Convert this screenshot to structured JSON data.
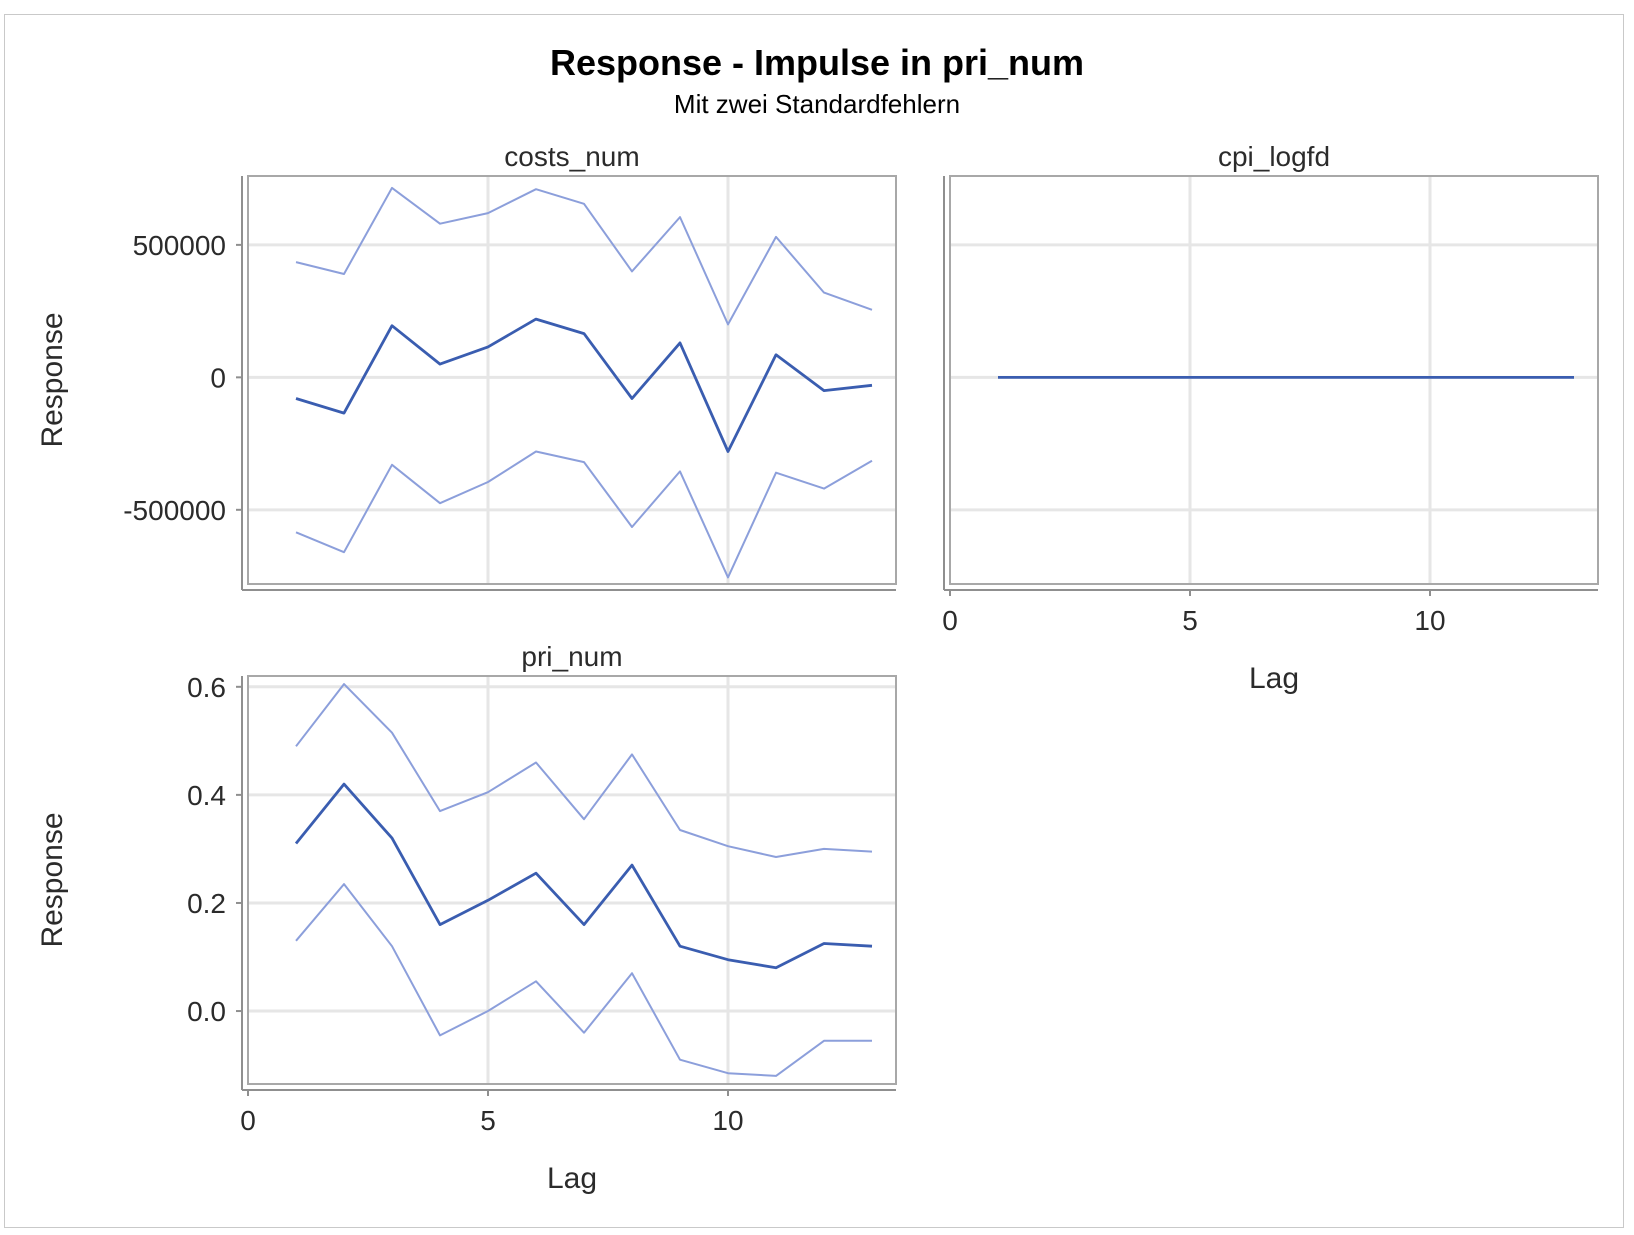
{
  "chart_data": {
    "type": "line",
    "title": "Response - Impulse in pri_num",
    "subtitle": "Mit zwei Standardfehlern",
    "xlabel": "Lag",
    "ylabel": "Response",
    "grid": true,
    "colors": {
      "response": "#3a5db0",
      "bands": "#8c9fdb",
      "grid": "#e6e6e6"
    },
    "panels": [
      {
        "id": "costs",
        "title": "costs_num",
        "xlim": [
          0,
          13.5
        ],
        "ylim": [
          -780000,
          760000
        ],
        "yticks": [
          -500000,
          0,
          500000
        ],
        "ytick_labels": [
          "-500000",
          "0",
          "500000"
        ],
        "xticks": [
          0,
          5,
          10
        ],
        "xtick_labels": [],
        "xgrid": [
          5,
          10
        ],
        "show_xlabel": false,
        "show_ylabel": true,
        "x": [
          1,
          2,
          3,
          4,
          5,
          6,
          7,
          8,
          9,
          10,
          11,
          12,
          13
        ],
        "series": [
          {
            "role": "upper",
            "values": [
              435000,
              390000,
              715000,
              580000,
              620000,
              710000,
              655000,
              400000,
              605000,
              200000,
              530000,
              320000,
              255000
            ]
          },
          {
            "role": "response",
            "values": [
              -80000,
              -135000,
              195000,
              50000,
              115000,
              220000,
              165000,
              -80000,
              130000,
              -280000,
              85000,
              -50000,
              -30000
            ]
          },
          {
            "role": "lower",
            "values": [
              -585000,
              -660000,
              -330000,
              -475000,
              -395000,
              -280000,
              -320000,
              -565000,
              -355000,
              -755000,
              -360000,
              -420000,
              -315000
            ]
          }
        ]
      },
      {
        "id": "cpi",
        "title": "cpi_logfd",
        "xlim": [
          0,
          13.5
        ],
        "ylim": [
          -780000,
          760000
        ],
        "yticks": [
          -500000,
          0,
          500000
        ],
        "ytick_labels": [],
        "xticks": [
          0,
          5,
          10
        ],
        "xtick_labels": [
          "0",
          "5",
          "10"
        ],
        "xgrid": [
          5,
          10
        ],
        "show_xlabel": true,
        "show_ylabel": false,
        "x": [
          1,
          2,
          3,
          4,
          5,
          6,
          7,
          8,
          9,
          10,
          11,
          12,
          13
        ],
        "series": [
          {
            "role": "upper",
            "values": [
              0,
              0,
              0,
              0,
              0,
              0,
              0,
              0,
              0,
              0,
              0,
              0,
              0
            ]
          },
          {
            "role": "lower",
            "values": [
              0,
              0,
              0,
              0,
              0,
              0,
              0,
              0,
              0,
              0,
              0,
              0,
              0
            ]
          },
          {
            "role": "response",
            "values": [
              0,
              0,
              0,
              0,
              0,
              0,
              0,
              0,
              0,
              0,
              0,
              0,
              0
            ]
          }
        ]
      },
      {
        "id": "pri",
        "title": "pri_num",
        "xlim": [
          0,
          13.5
        ],
        "ylim": [
          -0.135,
          0.62
        ],
        "yticks": [
          0.0,
          0.2,
          0.4,
          0.6
        ],
        "ytick_labels": [
          "0.0",
          "0.2",
          "0.4",
          "0.6"
        ],
        "xticks": [
          0,
          5,
          10
        ],
        "xtick_labels": [
          "0",
          "5",
          "10"
        ],
        "xgrid": [
          5,
          10
        ],
        "show_xlabel": true,
        "show_ylabel": true,
        "x": [
          1,
          2,
          3,
          4,
          5,
          6,
          7,
          8,
          9,
          10,
          11,
          12,
          13
        ],
        "series": [
          {
            "role": "upper",
            "values": [
              0.49,
              0.605,
              0.515,
              0.37,
              0.405,
              0.46,
              0.355,
              0.475,
              0.335,
              0.305,
              0.285,
              0.3,
              0.295
            ]
          },
          {
            "role": "response",
            "values": [
              0.31,
              0.42,
              0.32,
              0.16,
              0.205,
              0.255,
              0.16,
              0.27,
              0.12,
              0.095,
              0.08,
              0.125,
              0.12
            ]
          },
          {
            "role": "lower",
            "values": [
              0.13,
              0.235,
              0.12,
              -0.045,
              0.0,
              0.055,
              -0.04,
              0.07,
              -0.09,
              -0.115,
              -0.12,
              -0.055,
              -0.055
            ]
          }
        ]
      }
    ]
  }
}
